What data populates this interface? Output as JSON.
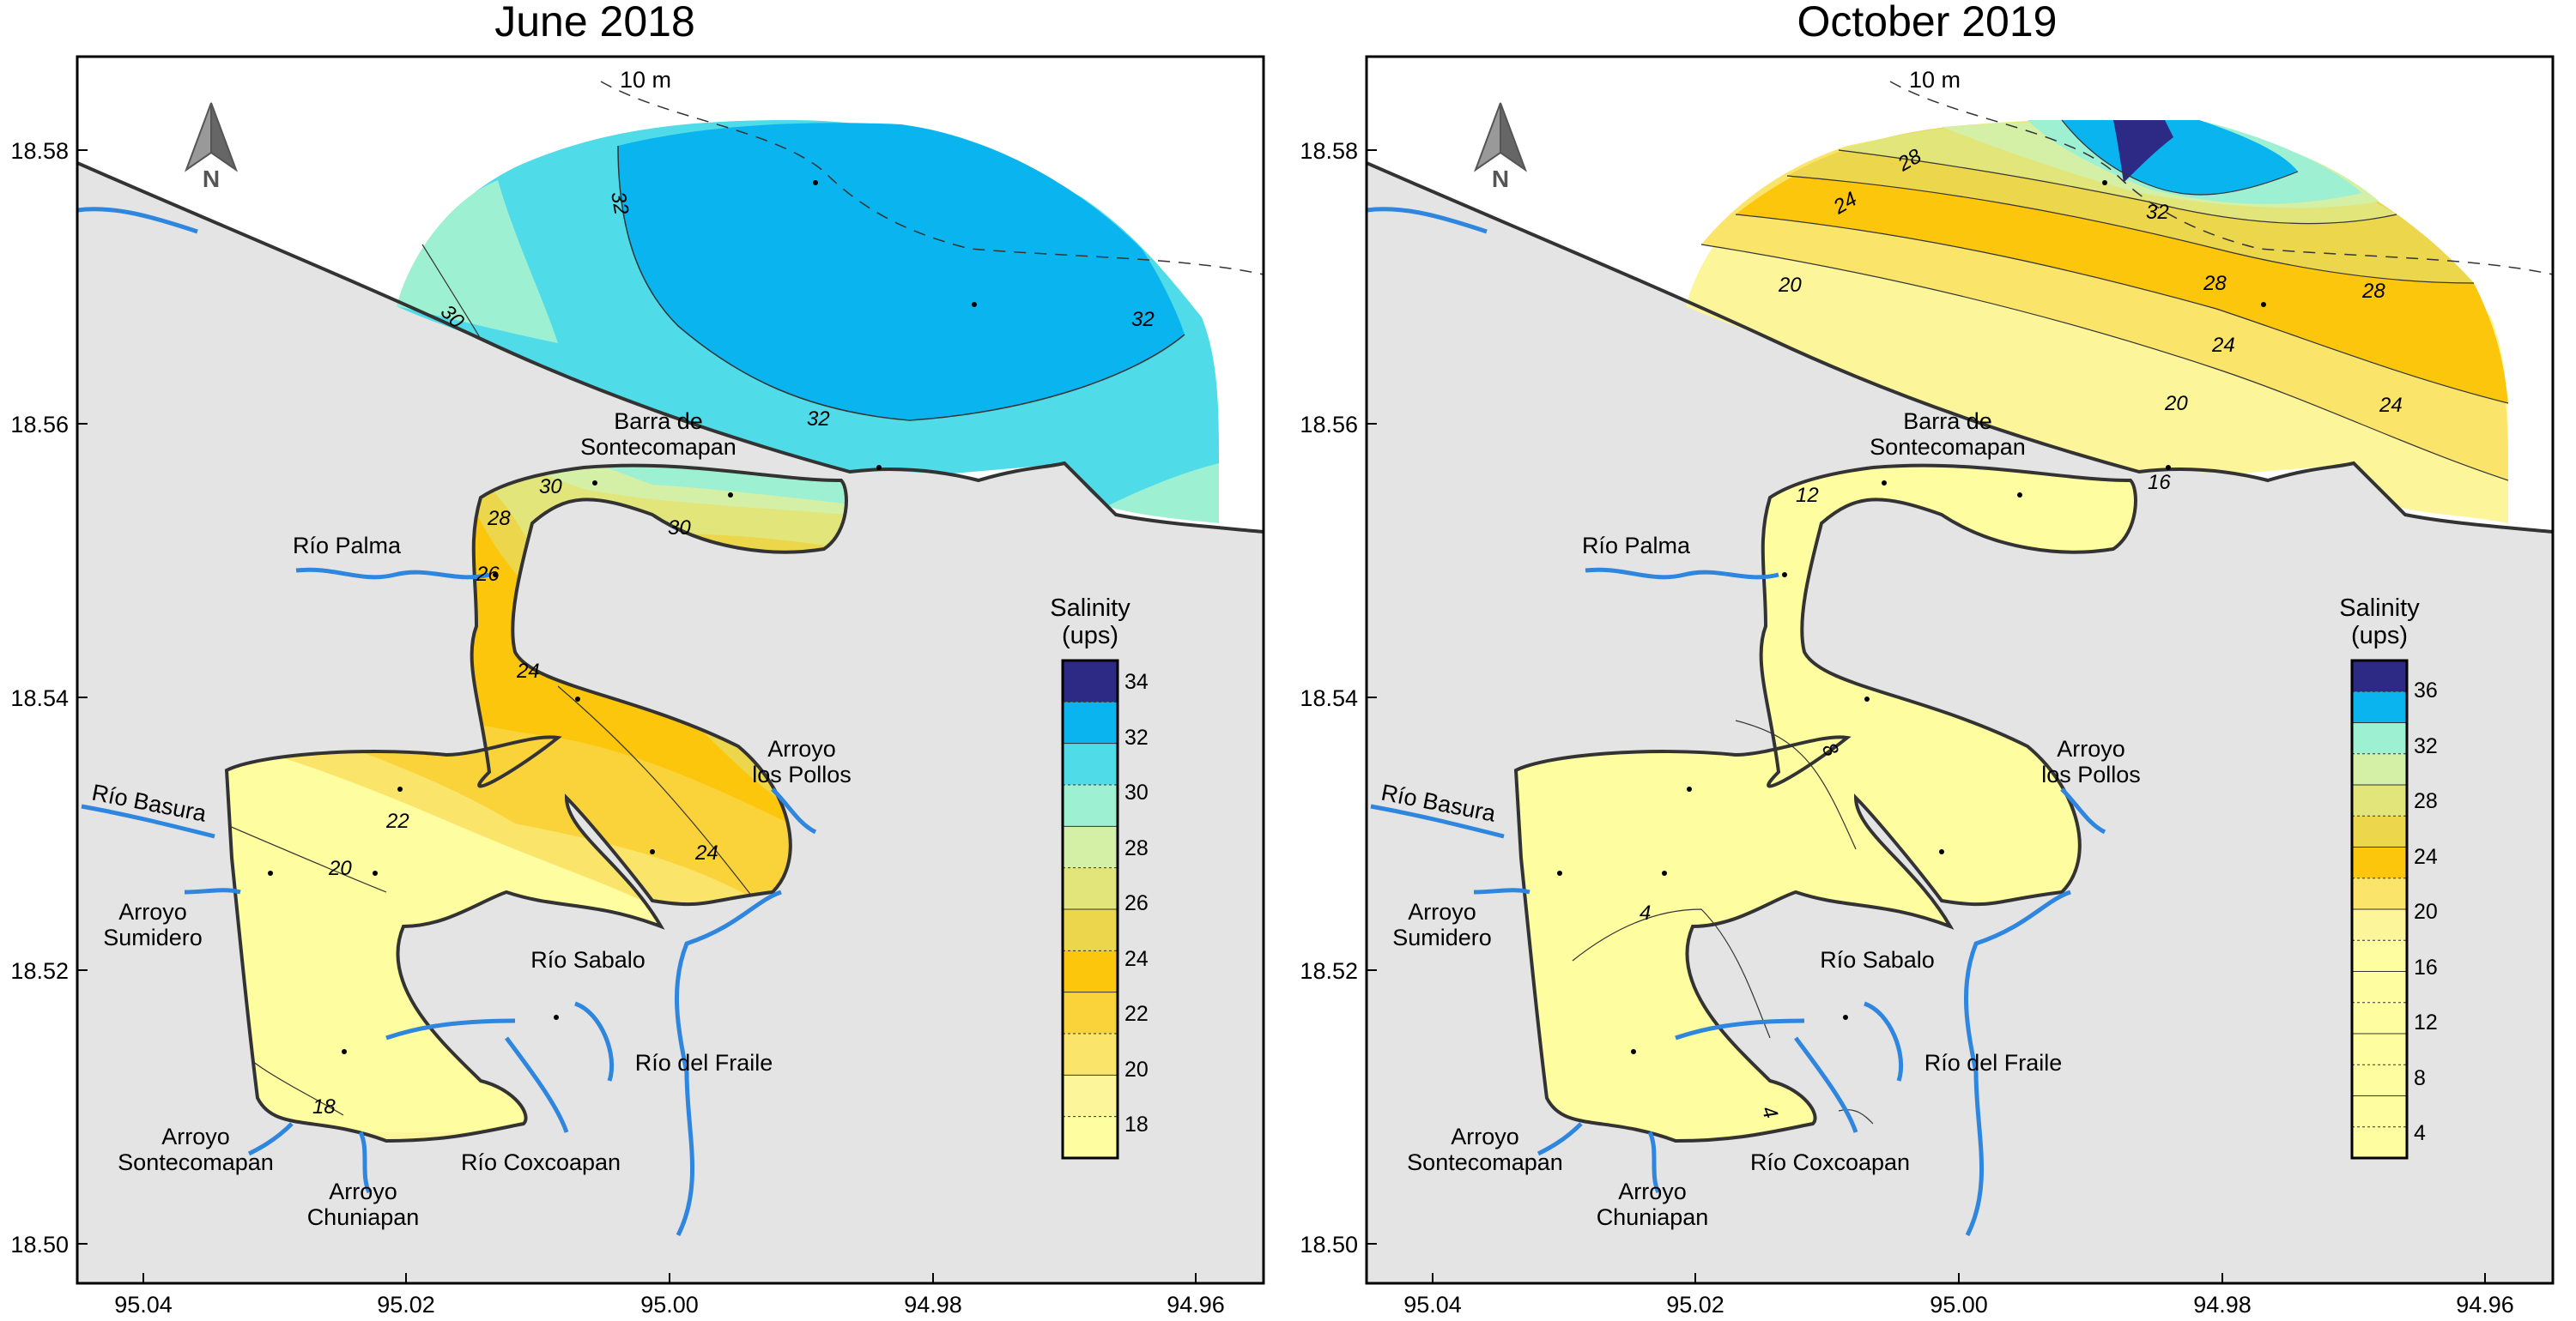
{
  "panels": [
    {
      "title": "June 2018",
      "contour_labels": [
        "32",
        "32",
        "32",
        "30",
        "30",
        "30",
        "28",
        "26",
        "24",
        "24",
        "22",
        "20",
        "18"
      ],
      "legend": {
        "title_line1": "Salinity",
        "title_line2": "(ups)",
        "ticks": [
          "34",
          "32",
          "30",
          "28",
          "26",
          "24",
          "22",
          "20",
          "18"
        ],
        "bands": [
          "#2d2a86",
          "#0ab4ef",
          "#4fdbe8",
          "#9ef0d2",
          "#d3f0a6",
          "#e2e67a",
          "#ecd64c",
          "#fcc60c",
          "#fad23a",
          "#fbe46a",
          "#fdf59a",
          "#fefda0"
        ]
      }
    },
    {
      "title": "October 2019",
      "contour_labels": [
        "28",
        "24",
        "20",
        "32",
        "28",
        "28",
        "24",
        "24",
        "20",
        "16",
        "12",
        "8",
        "4",
        "4"
      ],
      "legend": {
        "title_line1": "Salinity",
        "title_line2": "(ups)",
        "ticks": [
          "36",
          "32",
          "28",
          "24",
          "20",
          "16",
          "12",
          "8",
          "4"
        ],
        "bands": [
          "#2d2a86",
          "#0ab4ef",
          "#9ef0d2",
          "#d3f0a6",
          "#e2e67a",
          "#ecd64c",
          "#fcc60c",
          "#fbe46a",
          "#fdf59a",
          "#fefda0",
          "#fefda0",
          "#fefda0",
          "#fefda0",
          "#fefda0",
          "#fefda0",
          "#fefda0"
        ]
      }
    }
  ],
  "axes": {
    "x_ticks": [
      "95.04",
      "95.02",
      "95.00",
      "94.98",
      "94.96"
    ],
    "y_ticks": [
      "18.58",
      "18.56",
      "18.54",
      "18.52",
      "18.50"
    ]
  },
  "north_arrow": "N",
  "isobath_label": "10 m",
  "places": {
    "barra_line1": "Barra de",
    "barra_line2": "Sontecomapan",
    "rio_palma": "Río Palma",
    "arroyo_pollos_line1": "Arroyo",
    "arroyo_pollos_line2": "los Pollos",
    "rio_basura": "Río Basura",
    "arroyo_sumidero_line1": "Arroyo",
    "arroyo_sumidero_line2": "Sumidero",
    "rio_sabalo": "Río Sabalo",
    "rio_fraile": "Río del Fraile",
    "arroyo_sontecomapan_line1": "Arroyo",
    "arroyo_sontecomapan_line2": "Sontecomapan",
    "arroyo_chuniapan_line1": "Arroyo",
    "arroyo_chuniapan_line2": "Chuniapan",
    "rio_coxcoapan": "Río Coxcoapan"
  },
  "colors": {
    "land": "#e4e4e4",
    "river": "#2e86de",
    "coast": "#333333"
  }
}
